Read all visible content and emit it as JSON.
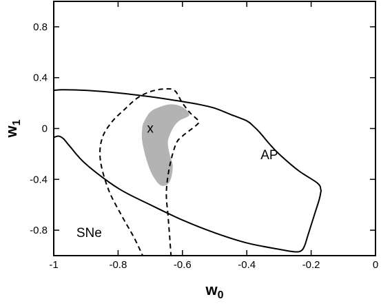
{
  "chart_data": {
    "type": "line",
    "title": "",
    "xlabel": {
      "base": "w",
      "sub": "0"
    },
    "ylabel": {
      "base": "w",
      "sub": "1"
    },
    "xlim": [
      -1,
      0
    ],
    "ylim": [
      -1,
      1
    ],
    "xticks": [
      -1,
      -0.8,
      -0.6,
      -0.4,
      -0.2,
      0
    ],
    "xtick_labels": [
      "-1",
      "-0.8",
      "-0.6",
      "-0.4",
      "-0.2",
      "0"
    ],
    "yticks": [
      -0.8,
      -0.4,
      0,
      0.4,
      0.8
    ],
    "ytick_labels": [
      "-0.8",
      "-0.4",
      "0",
      "0.4",
      "0.8"
    ],
    "grid": false,
    "series": [
      {
        "name": "AP",
        "style": "solid",
        "closed": false,
        "points": [
          [
            -1.0,
            0.3
          ],
          [
            -0.97,
            0.305
          ],
          [
            -0.9,
            0.3
          ],
          [
            -0.8,
            0.28
          ],
          [
            -0.7,
            0.25
          ],
          [
            -0.62,
            0.22
          ],
          [
            -0.55,
            0.19
          ],
          [
            -0.5,
            0.16
          ],
          [
            -0.45,
            0.11
          ],
          [
            -0.4,
            0.06
          ],
          [
            -0.38,
            0.02
          ],
          [
            -0.36,
            -0.03
          ],
          [
            -0.33,
            -0.12
          ],
          [
            -0.3,
            -0.2
          ],
          [
            -0.24,
            -0.33
          ],
          [
            -0.18,
            -0.43
          ],
          [
            -0.17,
            -0.48
          ],
          [
            -0.17,
            -0.5
          ],
          [
            -0.175,
            -0.56
          ],
          [
            -0.19,
            -0.68
          ],
          [
            -0.21,
            -0.84
          ],
          [
            -0.22,
            -0.92
          ],
          [
            -0.23,
            -0.96
          ],
          [
            -0.25,
            -0.97
          ],
          [
            -0.3,
            -0.95
          ],
          [
            -0.4,
            -0.9
          ],
          [
            -0.5,
            -0.82
          ],
          [
            -0.6,
            -0.72
          ],
          [
            -0.7,
            -0.6
          ],
          [
            -0.8,
            -0.47
          ],
          [
            -0.9,
            -0.28
          ],
          [
            -0.95,
            -0.14
          ],
          [
            -0.97,
            -0.08
          ],
          [
            -0.985,
            -0.06
          ],
          [
            -1.0,
            -0.07
          ]
        ]
      },
      {
        "name": "SNe",
        "style": "dashed",
        "closed": false,
        "points": [
          [
            -0.72,
            -1.02
          ],
          [
            -0.75,
            -0.86
          ],
          [
            -0.79,
            -0.68
          ],
          [
            -0.83,
            -0.48
          ],
          [
            -0.855,
            -0.25
          ],
          [
            -0.85,
            -0.08
          ],
          [
            -0.82,
            0.05
          ],
          [
            -0.78,
            0.15
          ],
          [
            -0.74,
            0.24
          ],
          [
            -0.7,
            0.29
          ],
          [
            -0.66,
            0.31
          ],
          [
            -0.625,
            0.3
          ],
          [
            -0.6,
            0.2
          ],
          [
            -0.575,
            0.12
          ],
          [
            -0.55,
            0.06
          ],
          [
            -0.555,
            0.03
          ],
          [
            -0.58,
            -0.02
          ],
          [
            -0.6,
            -0.06
          ],
          [
            -0.62,
            -0.12
          ],
          [
            -0.64,
            -0.3
          ],
          [
            -0.65,
            -0.5
          ],
          [
            -0.645,
            -0.68
          ],
          [
            -0.64,
            -0.84
          ],
          [
            -0.635,
            -1.02
          ]
        ]
      },
      {
        "name": "",
        "style": "filled",
        "color": "#b3b3b3",
        "closed": true,
        "points": [
          [
            -0.72,
            0.05
          ],
          [
            -0.7,
            0.13
          ],
          [
            -0.67,
            0.17
          ],
          [
            -0.64,
            0.19
          ],
          [
            -0.61,
            0.18
          ],
          [
            -0.585,
            0.14
          ],
          [
            -0.58,
            0.1
          ],
          [
            -0.61,
            0.06
          ],
          [
            -0.63,
            0.0
          ],
          [
            -0.645,
            -0.1
          ],
          [
            -0.64,
            -0.2
          ],
          [
            -0.63,
            -0.3
          ],
          [
            -0.64,
            -0.42
          ],
          [
            -0.665,
            -0.45
          ],
          [
            -0.69,
            -0.38
          ],
          [
            -0.71,
            -0.26
          ],
          [
            -0.725,
            -0.1
          ],
          [
            -0.725,
            0.0
          ]
        ]
      }
    ],
    "annotations": [
      {
        "text": "AP",
        "x": -0.33,
        "y": -0.21
      },
      {
        "text": "SNe",
        "x": -0.89,
        "y": -0.82
      },
      {
        "text": "x",
        "x": -0.7,
        "y": 0.0
      }
    ]
  }
}
